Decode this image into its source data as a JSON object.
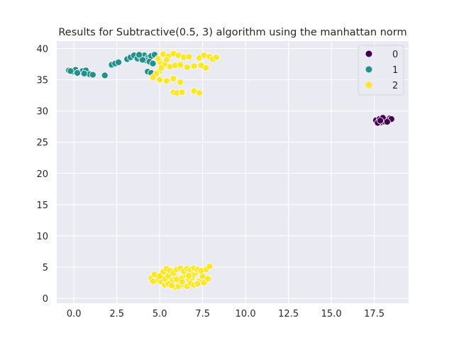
{
  "chart_data": {
    "type": "scatter",
    "title": "Results for Subtractive(0.5, 3) algorithm using the manhattan norm",
    "xlabel": "",
    "ylabel": "",
    "xlim": [
      -1.0,
      19.5
    ],
    "ylim": [
      -0.8,
      41.2
    ],
    "xticks": [
      0.0,
      2.5,
      5.0,
      7.5,
      10.0,
      12.5,
      15.0,
      17.5
    ],
    "xtick_labels": [
      "0.0",
      "2.5",
      "5.0",
      "7.5",
      "10.0",
      "12.5",
      "15.0",
      "17.5"
    ],
    "yticks": [
      0,
      5,
      10,
      15,
      20,
      25,
      30,
      35,
      40
    ],
    "ytick_labels": [
      "0",
      "5",
      "10",
      "15",
      "20",
      "25",
      "30",
      "35",
      "40"
    ],
    "grid": true,
    "background": "#eaeaf2",
    "legend": {
      "placement": "top-right"
    },
    "series": [
      {
        "name": "0",
        "color": "#440154",
        "points": [
          [
            17.6,
            28.5
          ],
          [
            17.8,
            28.7
          ],
          [
            18.0,
            28.4
          ],
          [
            18.2,
            28.6
          ],
          [
            18.4,
            28.8
          ],
          [
            17.9,
            28.2
          ],
          [
            18.1,
            28.3
          ],
          [
            18.3,
            28.5
          ],
          [
            17.7,
            28.1
          ],
          [
            18.5,
            28.7
          ],
          [
            18.0,
            28.9
          ],
          [
            17.85,
            28.45
          ],
          [
            18.25,
            28.25
          ]
        ]
      },
      {
        "name": "1",
        "color": "#21918c",
        "points": [
          [
            -0.3,
            36.5
          ],
          [
            -0.1,
            36.3
          ],
          [
            0.1,
            36.6
          ],
          [
            0.3,
            36.2
          ],
          [
            0.5,
            36.4
          ],
          [
            0.7,
            36.5
          ],
          [
            0.9,
            35.9
          ],
          [
            1.1,
            35.8
          ],
          [
            0.6,
            36.0
          ],
          [
            0.2,
            36.1
          ],
          [
            -0.2,
            36.4
          ],
          [
            1.8,
            35.7
          ],
          [
            2.2,
            37.4
          ],
          [
            2.4,
            37.6
          ],
          [
            2.6,
            37.8
          ],
          [
            3.1,
            38.3
          ],
          [
            3.3,
            38.6
          ],
          [
            3.5,
            38.9
          ],
          [
            3.7,
            38.4
          ],
          [
            3.9,
            38.7
          ],
          [
            4.1,
            38.9
          ],
          [
            4.3,
            38.5
          ],
          [
            4.5,
            38.8
          ],
          [
            4.7,
            39.0
          ],
          [
            4.2,
            38.1
          ],
          [
            4.4,
            37.9
          ],
          [
            4.6,
            37.6
          ],
          [
            4.0,
            38.2
          ],
          [
            3.8,
            39.0
          ],
          [
            4.3,
            36.3
          ],
          [
            4.5,
            36.1
          ]
        ]
      },
      {
        "name": "2",
        "color": "#fde725",
        "points": [
          [
            5.2,
            39.1
          ],
          [
            5.5,
            38.8
          ],
          [
            5.8,
            39.2
          ],
          [
            6.1,
            38.9
          ],
          [
            6.4,
            38.6
          ],
          [
            6.7,
            38.7
          ],
          [
            7.3,
            38.5
          ],
          [
            7.6,
            38.9
          ],
          [
            7.9,
            38.7
          ],
          [
            8.1,
            38.3
          ],
          [
            8.3,
            38.6
          ],
          [
            5.0,
            37.9
          ],
          [
            5.3,
            37.5
          ],
          [
            5.6,
            37.1
          ],
          [
            5.9,
            37.3
          ],
          [
            6.2,
            37.4
          ],
          [
            6.6,
            37.0
          ],
          [
            7.0,
            37.2
          ],
          [
            7.4,
            37.3
          ],
          [
            7.7,
            36.9
          ],
          [
            5.0,
            36.4
          ],
          [
            4.8,
            36.0
          ],
          [
            4.6,
            35.4
          ],
          [
            5.0,
            35.0
          ],
          [
            5.4,
            34.8
          ],
          [
            5.8,
            35.2
          ],
          [
            6.2,
            34.6
          ],
          [
            5.8,
            33.0
          ],
          [
            6.0,
            32.9
          ],
          [
            6.3,
            33.0
          ],
          [
            7.0,
            33.2
          ],
          [
            7.3,
            32.9
          ],
          [
            4.9,
            38.4
          ],
          [
            5.1,
            36.9
          ],
          [
            5.4,
            38.2
          ],
          [
            4.9,
            2.9
          ],
          [
            5.1,
            2.6
          ],
          [
            5.3,
            3.1
          ],
          [
            5.5,
            3.6
          ],
          [
            5.7,
            2.8
          ],
          [
            5.9,
            3.4
          ],
          [
            6.1,
            2.5
          ],
          [
            6.3,
            3.2
          ],
          [
            6.5,
            3.8
          ],
          [
            6.7,
            2.9
          ],
          [
            6.9,
            3.3
          ],
          [
            7.1,
            4.1
          ],
          [
            7.3,
            2.7
          ],
          [
            7.5,
            3.5
          ],
          [
            7.7,
            4.6
          ],
          [
            7.9,
            5.1
          ],
          [
            4.5,
            3.2
          ],
          [
            4.7,
            3.8
          ],
          [
            4.6,
            2.7
          ],
          [
            5.2,
            4.2
          ],
          [
            5.4,
            4.7
          ],
          [
            5.6,
            4.4
          ],
          [
            5.8,
            4.0
          ],
          [
            6.0,
            4.6
          ],
          [
            6.2,
            4.8
          ],
          [
            6.4,
            4.3
          ],
          [
            6.6,
            4.7
          ],
          [
            6.8,
            4.5
          ],
          [
            7.0,
            4.8
          ],
          [
            7.2,
            4.6
          ],
          [
            7.4,
            4.4
          ],
          [
            5.3,
            2.1
          ],
          [
            5.5,
            2.3
          ],
          [
            5.9,
            1.8
          ],
          [
            6.1,
            1.9
          ],
          [
            6.4,
            2.2
          ],
          [
            6.6,
            1.9
          ],
          [
            6.8,
            2.4
          ],
          [
            7.0,
            2.1
          ],
          [
            7.2,
            2.3
          ],
          [
            7.6,
            2.5
          ],
          [
            5.7,
            2.0
          ],
          [
            6.9,
            3.7
          ],
          [
            6.0,
            3.0
          ],
          [
            6.3,
            2.6
          ],
          [
            7.8,
            3.1
          ],
          [
            5.0,
            3.5
          ],
          [
            6.7,
            3.6
          ]
        ]
      }
    ]
  }
}
